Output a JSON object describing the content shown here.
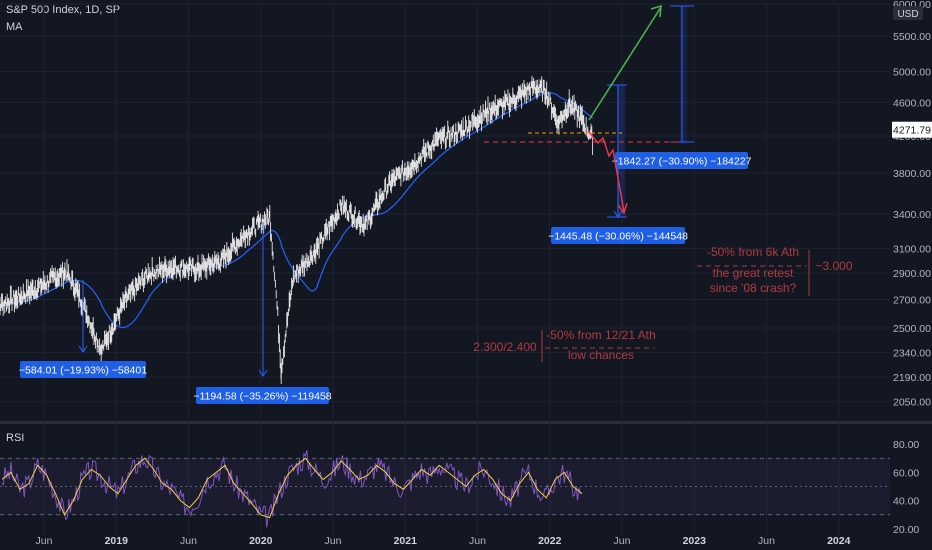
{
  "header": {
    "title": "S&P 500 Index, 1D, SP",
    "indicator": "MA",
    "rsi_label": "RSI"
  },
  "price_axis": {
    "currency": "USD",
    "last_price": "4271.79",
    "top_label": "6000.00"
  },
  "colors": {
    "background": "#131722",
    "candles": "#e8e8e8",
    "ma": "#2962ff",
    "measure": "#2962ff",
    "label_bg": "#1e5fe6",
    "bull_arrow": "#4caf50",
    "bear_arrow": "#f23645",
    "annotation_red": "#b23a3f",
    "rsi_line": "#7e57c2",
    "rsi_ma": "#f5d142"
  },
  "annotations": {
    "measure_2018": "−584.01 (−19.93%) −58401",
    "measure_2020": "−1194.58 (−35.26%) −119458",
    "measure_2022_low": "−1445.48 (−30.06%) −144548",
    "measure_2022_high": "−1842.27 (−30.90%) −184227",
    "note_6k_line1": "-50% from 6k Ath",
    "note_6k_line2": "the great retest",
    "note_6k_line3": "since '08 crash?",
    "note_6k_value": "~3.000",
    "note_ath_line1": "-50% from 12/21 Ath",
    "note_ath_line2": "low chances",
    "note_ath_value": "2.300/2.400"
  },
  "chart_data": [
    {
      "type": "line",
      "name": "S&P 500 Index, 1D, SP",
      "y_scale": "log",
      "ylim": [
        1960,
        6000
      ],
      "y_ticks": [
        "6000.00",
        "5500.00",
        "5000.00",
        "4600.00",
        "4200.00",
        "3800.00",
        "3400.00",
        "3100.00",
        "2900.00",
        "2700.00",
        "2500.00",
        "2340.00",
        "2190.00",
        "2050.00"
      ],
      "x_ticks": [
        "Jun",
        "2019",
        "Jun",
        "2020",
        "Jun",
        "2021",
        "Jun",
        "2022",
        "Jun",
        "2023",
        "Jun",
        "2024"
      ],
      "series": [
        {
          "name": "",
          "x": [
            "2018-03",
            "2018-05",
            "2018-07",
            "2018-09",
            "2018-10",
            "2018-12",
            "2019-02",
            "2019-04",
            "2019-06",
            "2019-08",
            "2019-10",
            "2019-12",
            "2020-02",
            "2020-03",
            "2020-04",
            "2020-06",
            "2020-08",
            "2020-10",
            "2020-12",
            "2021-02",
            "2021-04",
            "2021-06",
            "2021-08",
            "2021-10",
            "2021-12",
            "2022-01",
            "2022-02",
            "2022-03",
            "2022-04",
            "2022-05"
          ],
          "values": [
            2640,
            2710,
            2800,
            2910,
            2760,
            2350,
            2700,
            2900,
            2950,
            2930,
            3000,
            3220,
            3380,
            2230,
            2870,
            3100,
            3480,
            3300,
            3700,
            3900,
            4150,
            4260,
            4480,
            4600,
            4800,
            4730,
            4350,
            4580,
            4400,
            4150
          ]
        }
      ]
    },
    {
      "type": "line",
      "name": "RSI",
      "ylim": [
        15,
        85
      ],
      "y_ticks": [
        "80.00",
        "60.00",
        "40.00",
        "20.00"
      ],
      "levels": [
        70,
        50,
        30
      ],
      "series": [
        {
          "name": "",
          "values": [
            55,
            60,
            48,
            52,
            65,
            58,
            45,
            30,
            40,
            55,
            62,
            58,
            50,
            45,
            55,
            65,
            70,
            62,
            52,
            48,
            40,
            35,
            42,
            55,
            60,
            65,
            52,
            45,
            38,
            30,
            28,
            45,
            58,
            65,
            70,
            62,
            55,
            60,
            68,
            62,
            55,
            58,
            65,
            60,
            52,
            48,
            55,
            62,
            58,
            65,
            60,
            55,
            50,
            58,
            62,
            55,
            45,
            40,
            52,
            60,
            48,
            42,
            55,
            60,
            50,
            45
          ]
        }
      ]
    }
  ]
}
